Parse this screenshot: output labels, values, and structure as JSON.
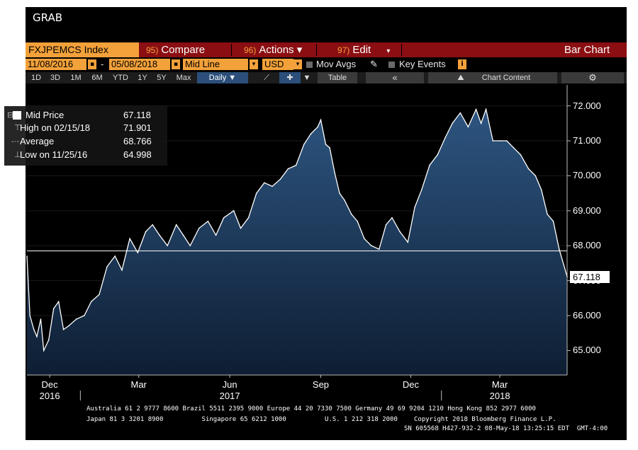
{
  "window": {
    "title": "GRAB"
  },
  "toolbar": {
    "ticker": "FXJPEMCS Index",
    "compare_num": "95)",
    "compare_label": "Compare",
    "actions_num": "96)",
    "actions_label": "Actions ▾",
    "edit_num": "97)",
    "edit_label": "Edit",
    "chart_type": "Bar Chart"
  },
  "range": {
    "start": "11/08/2016",
    "end": "05/08/2018",
    "line_type": "Mid Line",
    "currency": "USD",
    "mov_avgs": "Mov Avgs",
    "key_events": "Key Events"
  },
  "periods": [
    "1D",
    "3D",
    "1M",
    "6M",
    "YTD",
    "1Y",
    "5Y",
    "Max"
  ],
  "frequency": "Daily ▼",
  "table_label": "Table",
  "chart_content_label": "Chart Content",
  "legend": {
    "mid_label": "Mid Price",
    "mid_value": "67.118",
    "high_label": "High on 02/15/18",
    "high_value": "71.901",
    "avg_label": "Average",
    "avg_value": "68.766",
    "low_label": "Low on 11/25/16",
    "low_value": "64.998"
  },
  "colors": {
    "accent": "#f3a13a",
    "menu_bar": "#8a0e12",
    "area": "#1e3a5c"
  },
  "footer": {
    "line1": "Australia 61 2 9777 8600 Brazil 5511 2395 9000 Europe 44 20 7330 7500 Germany 49 69 9204 1210 Hong Kong 852 2977 6000",
    "line2a": "Japan 81 3 3201 8900          Singapore 65 6212 1000          U.S. 1 212 318 2000",
    "line2b": "Copyright 2018 Bloomberg Finance L.P.",
    "line3": "SN 605568 H427-932-2 08-May-18 13:25:15 EDT  GMT-4:00"
  },
  "chart_data": {
    "type": "area",
    "title": "",
    "xlabel": "",
    "ylabel": "",
    "x_start": "2016-11-08",
    "x_end": "2018-05-08",
    "ylim": [
      64.3,
      72.6
    ],
    "yticks": [
      "72.000",
      "71.000",
      "70.000",
      "69.000",
      "68.000",
      "67.000",
      "66.000",
      "65.000"
    ],
    "ytick_values": [
      72,
      71,
      70,
      69,
      68,
      67,
      66,
      65
    ],
    "xticks": [
      {
        "date": "2016-12-01",
        "month": "Dec",
        "year": "2016"
      },
      {
        "date": "2017-03-01",
        "month": "Mar",
        "year": ""
      },
      {
        "date": "2017-06-01",
        "month": "Jun",
        "year": "2017"
      },
      {
        "date": "2017-09-01",
        "month": "Sep",
        "year": ""
      },
      {
        "date": "2017-12-01",
        "month": "Dec",
        "year": ""
      },
      {
        "date": "2018-03-01",
        "month": "Mar",
        "year": "2018"
      }
    ],
    "reference_line": 67.85,
    "last_value": "67.118",
    "series": [
      {
        "name": "Mid Price",
        "x": [
          "2016-11-08",
          "2016-11-11",
          "2016-11-15",
          "2016-11-18",
          "2016-11-22",
          "2016-11-25",
          "2016-11-30",
          "2016-12-05",
          "2016-12-10",
          "2016-12-15",
          "2016-12-20",
          "2016-12-28",
          "2017-01-05",
          "2017-01-12",
          "2017-01-20",
          "2017-01-28",
          "2017-02-05",
          "2017-02-12",
          "2017-02-20",
          "2017-02-28",
          "2017-03-08",
          "2017-03-15",
          "2017-03-22",
          "2017-03-30",
          "2017-04-08",
          "2017-04-15",
          "2017-04-22",
          "2017-05-01",
          "2017-05-10",
          "2017-05-18",
          "2017-05-26",
          "2017-06-05",
          "2017-06-12",
          "2017-06-20",
          "2017-06-28",
          "2017-07-06",
          "2017-07-14",
          "2017-07-22",
          "2017-07-30",
          "2017-08-07",
          "2017-08-15",
          "2017-08-22",
          "2017-08-29",
          "2017-09-01",
          "2017-09-06",
          "2017-09-10",
          "2017-09-15",
          "2017-09-20",
          "2017-09-25",
          "2017-10-02",
          "2017-10-08",
          "2017-10-15",
          "2017-10-22",
          "2017-10-30",
          "2017-11-06",
          "2017-11-12",
          "2017-11-20",
          "2017-11-28",
          "2017-12-05",
          "2017-12-12",
          "2017-12-20",
          "2017-12-28",
          "2018-01-05",
          "2018-01-12",
          "2018-01-20",
          "2018-01-28",
          "2018-02-05",
          "2018-02-10",
          "2018-02-15",
          "2018-02-22",
          "2018-03-01",
          "2018-03-08",
          "2018-03-15",
          "2018-03-22",
          "2018-03-30",
          "2018-04-06",
          "2018-04-12",
          "2018-04-18",
          "2018-04-24",
          "2018-04-30",
          "2018-05-08"
        ],
        "y": [
          67.7,
          66.0,
          65.6,
          65.4,
          65.9,
          65.0,
          65.3,
          66.2,
          66.4,
          65.6,
          65.7,
          65.9,
          66.0,
          66.4,
          66.6,
          67.4,
          67.7,
          67.3,
          68.2,
          67.8,
          68.4,
          68.6,
          68.3,
          68.0,
          68.6,
          68.3,
          68.0,
          68.5,
          68.7,
          68.3,
          68.8,
          69.0,
          68.5,
          68.8,
          69.5,
          69.8,
          69.7,
          69.9,
          70.2,
          70.3,
          70.9,
          71.2,
          71.4,
          71.6,
          70.9,
          70.8,
          70.1,
          69.5,
          69.3,
          68.9,
          68.7,
          68.2,
          68.0,
          67.9,
          68.6,
          68.8,
          68.4,
          68.1,
          69.1,
          69.6,
          70.3,
          70.6,
          71.1,
          71.5,
          71.8,
          71.4,
          71.9,
          71.5,
          71.901,
          71.0,
          71.0,
          71.0,
          70.8,
          70.6,
          70.2,
          70.0,
          69.6,
          68.9,
          68.7,
          67.9,
          67.118
        ]
      }
    ]
  }
}
